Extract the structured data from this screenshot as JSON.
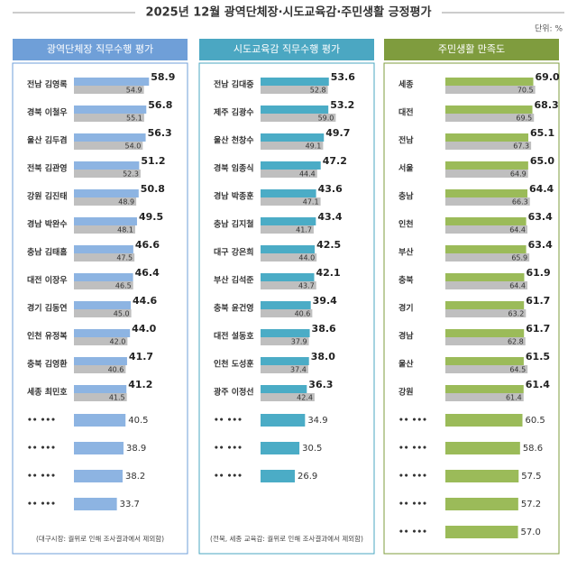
{
  "title": "2025년 12월 광역단체장·시도교육감·주민생활 긍정평가",
  "unit": "단위: %",
  "chart_data": [
    {
      "type": "bar",
      "title": "광역단체장 직무수행 평가",
      "header_color": "#6f9fd8",
      "xlim": [
        0,
        75
      ],
      "categories": [
        "전남 김영록",
        "경북 이철우",
        "울산 김두겸",
        "전북 김관영",
        "강원 김진태",
        "경남 박완수",
        "충남 김태흠",
        "대전 이장우",
        "경기 김동연",
        "인천 유정복",
        "충북 김영환",
        "세종 최민호",
        "•• •••",
        "•• •••",
        "•• •••",
        "•• •••"
      ],
      "series": [
        {
          "color": "#8db4e2",
          "values": [
            58.9,
            56.8,
            56.3,
            51.2,
            50.8,
            49.5,
            46.6,
            46.4,
            44.6,
            44.0,
            41.7,
            41.2,
            40.5,
            38.9,
            38.2,
            33.7
          ]
        },
        {
          "color": "#bfbfbf",
          "values": [
            54.9,
            55.1,
            54.0,
            52.3,
            48.9,
            48.1,
            47.5,
            46.5,
            45.0,
            42.0,
            40.6,
            41.5,
            null,
            null,
            null,
            null
          ]
        }
      ],
      "note": "(대구시장: 궐위로 인해 조사결과에서 제외함)"
    },
    {
      "type": "bar",
      "title": "시도교육감 직무수행 평가",
      "header_color": "#4ba7c2",
      "xlim": [
        0,
        75
      ],
      "categories": [
        "전남 김대중",
        "제주 김광수",
        "울산 천창수",
        "경북 임종식",
        "경남 박종훈",
        "충남 김지철",
        "대구 강은희",
        "부산 김석준",
        "충북 윤건영",
        "대전 설동호",
        "인천 도성훈",
        "광주 이정선",
        "•• •••",
        "•• •••",
        "•• •••"
      ],
      "series": [
        {
          "color": "#4bacc6",
          "values": [
            53.6,
            53.2,
            49.7,
            47.2,
            43.6,
            43.4,
            42.5,
            42.1,
            39.4,
            38.6,
            38.0,
            36.3,
            34.9,
            30.5,
            26.9
          ]
        },
        {
          "color": "#bfbfbf",
          "values": [
            52.8,
            59.0,
            49.1,
            44.4,
            47.1,
            41.7,
            44.0,
            43.7,
            40.6,
            37.9,
            37.4,
            42.4,
            null,
            null,
            null
          ]
        }
      ],
      "note": "(전북, 세종 교육감: 궐위로 인해 조사결과에서 제외함)"
    },
    {
      "type": "bar",
      "title": "주민생활 만족도",
      "header_color": "#7f9c3e",
      "xlim": [
        0,
        75
      ],
      "categories": [
        "세종",
        "대전",
        "전남",
        "서울",
        "충남",
        "인천",
        "부산",
        "충북",
        "경기",
        "경남",
        "울산",
        "강원",
        "•• •••",
        "•• •••",
        "•• •••",
        "•• •••",
        "•• •••"
      ],
      "series": [
        {
          "color": "#9bbb59",
          "values": [
            69.0,
            68.3,
            65.1,
            65.0,
            64.4,
            63.4,
            63.4,
            61.9,
            61.7,
            61.7,
            61.5,
            61.4,
            60.5,
            58.6,
            57.5,
            57.2,
            57.0
          ]
        },
        {
          "color": "#bfbfbf",
          "values": [
            70.5,
            69.5,
            67.3,
            64.9,
            66.3,
            64.4,
            65.9,
            64.4,
            63.2,
            62.8,
            64.5,
            61.4,
            null,
            null,
            null,
            null,
            null
          ]
        }
      ]
    }
  ]
}
